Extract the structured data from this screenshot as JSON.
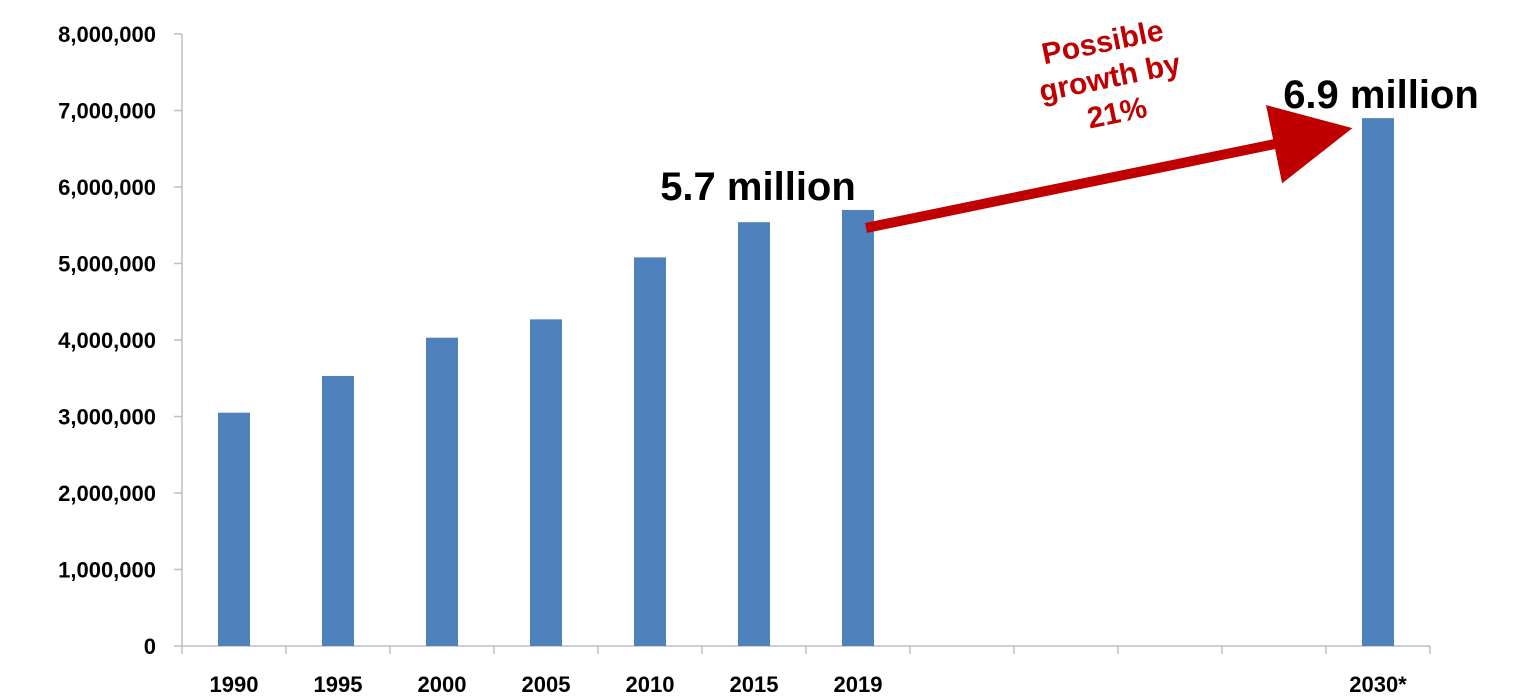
{
  "chart_data": {
    "type": "bar",
    "categories": [
      "1990",
      "1995",
      "2000",
      "2005",
      "2010",
      "2015",
      "2019",
      "",
      "",
      "",
      "",
      "2030*"
    ],
    "values": [
      3050000,
      3530000,
      4030000,
      4270000,
      5080000,
      5540000,
      5700000,
      null,
      null,
      null,
      null,
      6900000
    ],
    "ylim": [
      0,
      8000000
    ],
    "yticks": [
      0,
      1000000,
      2000000,
      3000000,
      4000000,
      5000000,
      6000000,
      7000000,
      8000000
    ],
    "ytick_labels": [
      "0",
      "1,000,000",
      "2,000,000",
      "3,000,000",
      "4,000,000",
      "5,000,000",
      "6,000,000",
      "7,000,000",
      "8,000,000"
    ],
    "grid": false,
    "colors": {
      "bar": "#4f81bd",
      "arrow": "#c00000",
      "axis": "#bfbfbf"
    },
    "annotations": {
      "current_label": "5.7 million",
      "future_label": "6.9 million",
      "growth_lines": [
        "Possible",
        "growth by",
        "21%"
      ]
    }
  }
}
